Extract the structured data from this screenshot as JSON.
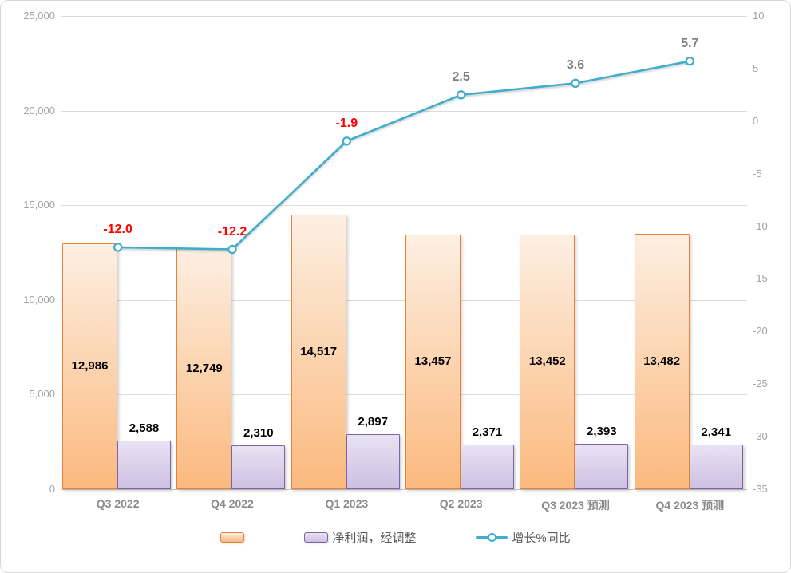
{
  "chart_data": {
    "type": "combo-bar-line",
    "categories": [
      "Q3 2022",
      "Q4 2022",
      "Q1 2023",
      "Q2 2023",
      "Q3 2023 预测",
      "Q4 2023 预测"
    ],
    "series": [
      {
        "name": "",
        "type": "bar",
        "palette": "orange",
        "axis": "left",
        "values": [
          12986,
          12749,
          14517,
          13457,
          13452,
          13482
        ],
        "labels": [
          "12,986",
          "12,749",
          "14,517",
          "13,457",
          "13,452",
          "13,482"
        ]
      },
      {
        "name": "净利润，经调整",
        "type": "bar",
        "palette": "purple",
        "axis": "left",
        "values": [
          2588,
          2310,
          2897,
          2371,
          2393,
          2341
        ],
        "labels": [
          "2,588",
          "2,310",
          "2,897",
          "2,371",
          "2,393",
          "2,341"
        ]
      },
      {
        "name": "增长%同比",
        "type": "line",
        "palette": "teal",
        "axis": "right",
        "values": [
          -12.0,
          -12.2,
          -1.9,
          2.5,
          3.6,
          5.7
        ],
        "labels": [
          "-12.0",
          "-12.2",
          "-1.9",
          "2.5",
          "3.6",
          "5.7"
        ]
      }
    ],
    "left_axis": {
      "min": 0,
      "max": 25000,
      "ticks": [
        "25,000",
        "20,000",
        "15,000",
        "10,000",
        "5,000",
        "0"
      ]
    },
    "right_axis": {
      "min": -35,
      "max": 10,
      "ticks": [
        "10",
        "5",
        "0",
        "-5",
        "-10",
        "-15",
        "-20",
        "-25",
        "-30",
        "-35"
      ]
    },
    "grid": true,
    "legend_position": "bottom"
  },
  "palette": {
    "orange_border": "#E58139",
    "orange_top": "#FDEFE2",
    "orange_bottom": "#FBB97E",
    "purple_border": "#7E63A6",
    "purple_top": "#E9E2F4",
    "purple_bottom": "#CDC0E2",
    "line": "#41ADCD",
    "marker_fill": "#FFFFFF",
    "negative_label": "#FF0000",
    "positive_label": "#7F7F7F",
    "bar_label": "#000000",
    "axis_text": "#A3A3A3",
    "x_text": "#8A8A8A",
    "grid_line": "#DCDCDC",
    "axis_line": "#C6C6C6",
    "frame_border": "#D9D9D9",
    "legend_text": "#595959"
  }
}
